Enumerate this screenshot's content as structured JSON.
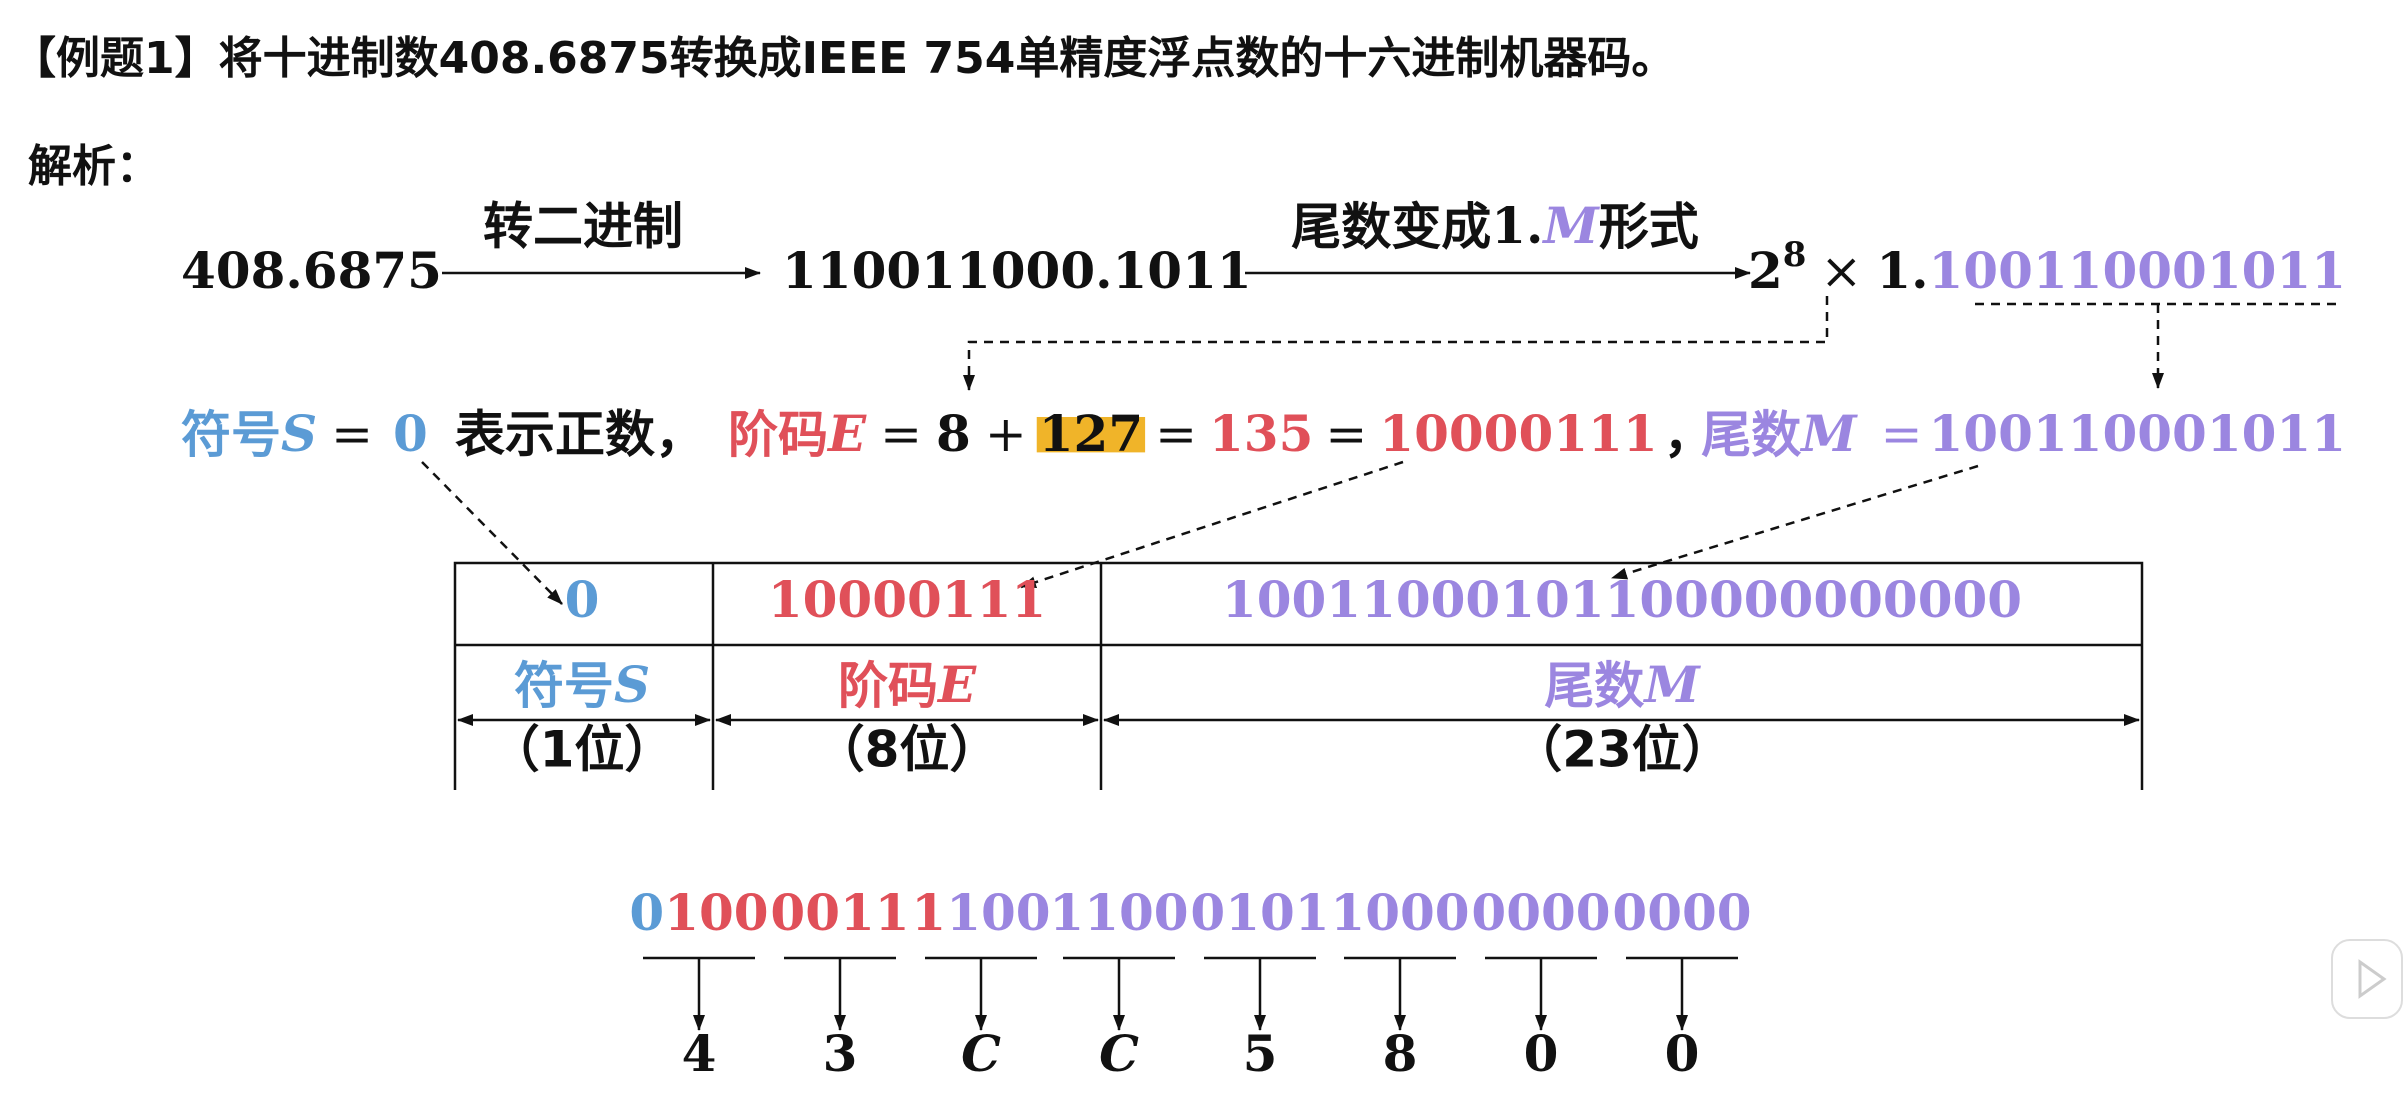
{
  "title": "【例题1】将十进制数408.6875转换成IEEE 754单精度浮点数的十六进制机器码。",
  "analysis_label": "解析：",
  "conversion": {
    "decimal": "408.6875",
    "step1_label": "转二进制",
    "binary": "110011000.1011",
    "step2_label": {
      "before": "尾数变成",
      "lead": "1.",
      "symbol": "M",
      "after": "形式"
    },
    "normalized": {
      "base": "2",
      "exponent": "8",
      "times": "×",
      "lead": "1.",
      "mantissa": "100110001011"
    }
  },
  "fields": {
    "sign": {
      "label": "符号",
      "symbol": "S",
      "equals": "=",
      "value": "0",
      "note": "表示正数，"
    },
    "exponent": {
      "label": "阶码",
      "symbol": "E",
      "equals": "=",
      "true_exp": "8",
      "plus": "+",
      "bias": "127",
      "equals2": "=",
      "decimal": "135",
      "equals3": "=",
      "binary": "10000111",
      "sep": "，"
    },
    "mantissa": {
      "label": "尾数",
      "symbol": "M",
      "equals": "=",
      "binary": "100110001011"
    }
  },
  "table": {
    "cells": [
      "0",
      "10000111",
      "10011000101100000000000"
    ],
    "names": [
      {
        "label": "符号",
        "symbol": "S",
        "width": "（1位）"
      },
      {
        "label": "阶码",
        "symbol": "E",
        "width": "（8位）"
      },
      {
        "label": "尾数",
        "symbol": "M",
        "width": "（23位）"
      }
    ]
  },
  "nibbles": [
    [
      {
        "text": "0",
        "color": "#5b9bd5"
      },
      {
        "text": "100",
        "color": "#e05059"
      }
    ],
    [
      {
        "text": "0011",
        "color": "#e05059"
      }
    ],
    [
      {
        "text": "1",
        "color": "#e05059"
      },
      {
        "text": "100",
        "color": "#9b86e0"
      }
    ],
    [
      {
        "text": "1100",
        "color": "#9b86e0"
      }
    ],
    [
      {
        "text": "0101",
        "color": "#9b86e0"
      }
    ],
    [
      {
        "text": "1000",
        "color": "#9b86e0"
      }
    ],
    [
      {
        "text": "0000",
        "color": "#9b86e0"
      }
    ],
    [
      {
        "text": "0000",
        "color": "#9b86e0"
      }
    ]
  ],
  "hex": [
    "4",
    "3",
    "C",
    "C",
    "5",
    "8",
    "0",
    "0"
  ]
}
